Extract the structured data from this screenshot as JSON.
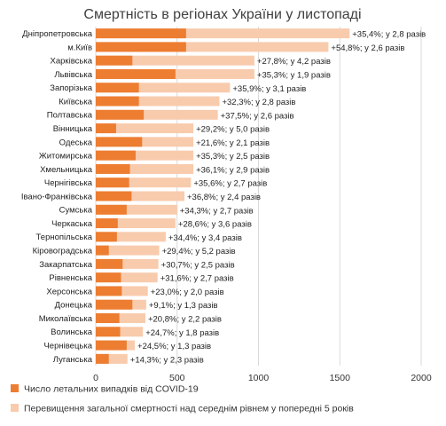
{
  "chart_data": {
    "type": "bar",
    "orientation": "horizontal",
    "title": "Смертність в регіонах України у листопаді",
    "categories": [
      "Дніпропетровська",
      "м.Київ",
      "Харківська",
      "Львівська",
      "Запорізька",
      "Київська",
      "Полтавська",
      "Вінницька",
      "Одеська",
      "Житомирська",
      "Хмельницька",
      "Чернігівська",
      "Івано-Франківська",
      "Сумська",
      "Черкаська",
      "Тернопільська",
      "Кіровоградська",
      "Закарпатська",
      "Рівненська",
      "Херсонська",
      "Донецька",
      "Миколаївська",
      "Волинська",
      "Чернівецька",
      "Луганська"
    ],
    "series": [
      {
        "name": "Число летальних випадків від COVID-19",
        "color": "#ED7D31",
        "values": [
          555,
          555,
          225,
          490,
          265,
          265,
          295,
          125,
          285,
          245,
          210,
          205,
          220,
          190,
          135,
          130,
          80,
          165,
          155,
          160,
          225,
          145,
          150,
          190,
          80
        ]
      },
      {
        "name": "Перевищення загальної смертності над середнім рівнем у попередні 5 років",
        "color": "#F8CBAD",
        "values": [
          1560,
          1430,
          975,
          975,
          825,
          760,
          750,
          600,
          600,
          600,
          600,
          585,
          545,
          500,
          490,
          430,
          390,
          385,
          380,
          320,
          310,
          305,
          290,
          240,
          195
        ]
      }
    ],
    "annotations": [
      "+35,4%; у 2,8 разів",
      "+54,8%; у 2,6 разів",
      "+27,8%; у 4,2 разів",
      "+35,3%; у 1,9 разів",
      "+35,9%; у 3,1 разів",
      "+32,3%; у 2,8 разів",
      "+37,5%; у 2,6 разів",
      "+29,2%; у 5,0 разів",
      "+21,6%; у 2,1 разів",
      "+35,3%; у 2,5 разів",
      "+36,1%; у 2,9 разів",
      "+35,6%; у 2,7 разів",
      "+36,8%; у 2,4 разів",
      "+34,3%; у 2,7 разів",
      "+28,6%; у 3,6 разів",
      "+34,4%; у 3,4 разів",
      "+29,4%; у 5,2 разів",
      "+30,7%; у 2,5 разів",
      "+31,6%; у 2,7 разів",
      "+23,0%; у 2,0 разів",
      "+9,1%; у 1,3 разів",
      "+20,8%; у 2,2 разів",
      "+24,7%; у 1,8 разів",
      "+24,5%; у 1,3 разів",
      "+14,3%; у 2,3 разів"
    ],
    "x_ticks": [
      "0",
      "500",
      "1000",
      "1500",
      "2000"
    ],
    "xlim": [
      0,
      2000
    ],
    "grid": true,
    "legend_position": "bottom"
  }
}
